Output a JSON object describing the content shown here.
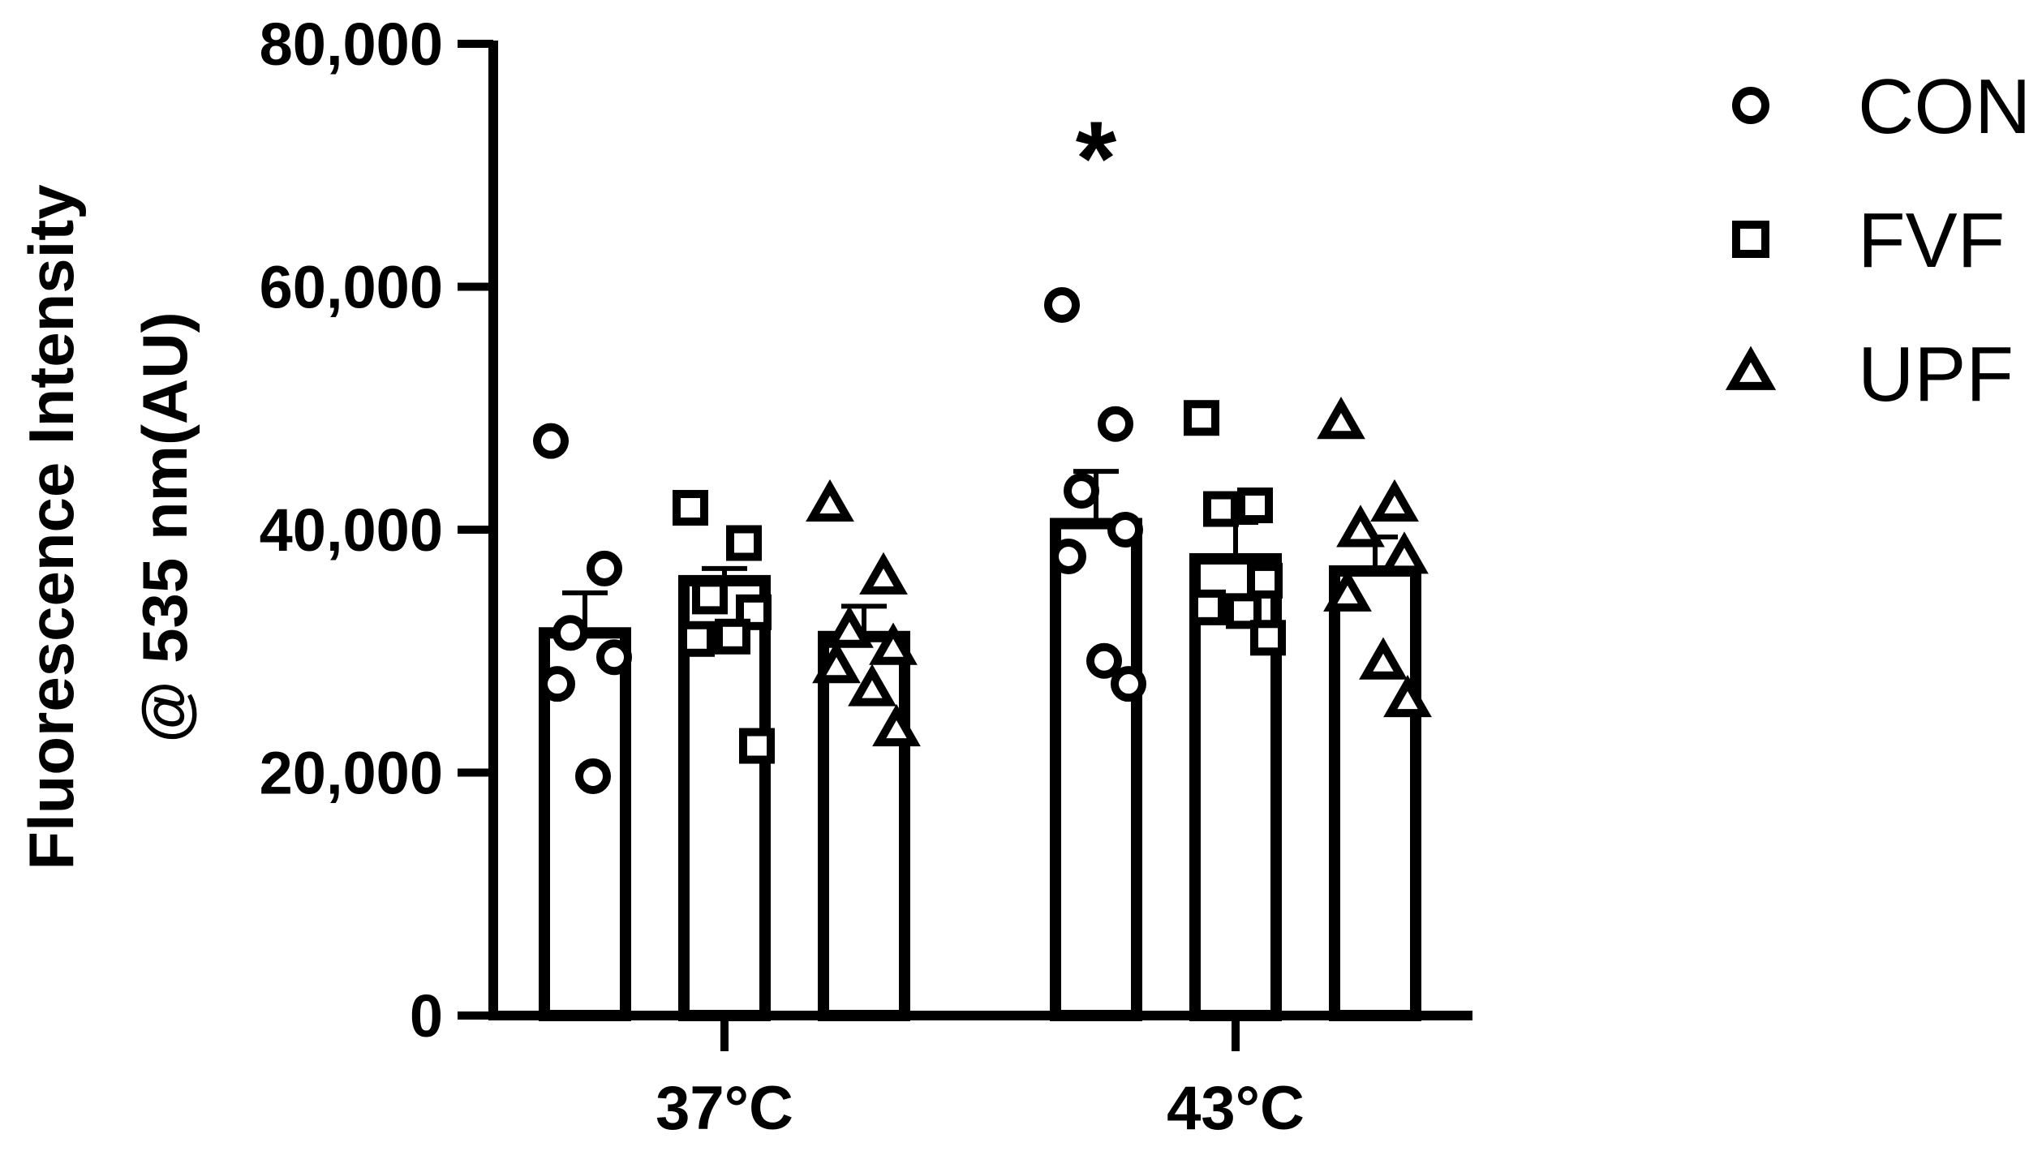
{
  "chart_data": {
    "type": "bar",
    "ylabel_line1": "Fluorescence Intensity",
    "ylabel_line2": "@ 535 nm(AU)",
    "ylim": [
      0,
      80000
    ],
    "yticks": [
      0,
      20000,
      40000,
      60000,
      80000
    ],
    "ytick_labels": [
      "0",
      "20,000",
      "40,000",
      "60,000",
      "80,000"
    ],
    "categories": [
      "37°C",
      "43°C"
    ],
    "series": [
      {
        "name": "CON",
        "marker": "circle",
        "means": [
          31500,
          40500
        ],
        "sem": [
          3300,
          4300
        ],
        "points": [
          [
            47300,
            36800,
            31500,
            29500,
            27300,
            19700
          ],
          [
            58500,
            48700,
            43200,
            40000,
            37800,
            29200,
            27300
          ]
        ]
      },
      {
        "name": "FVF",
        "marker": "square",
        "means": [
          35800,
          37600
        ],
        "sem": [
          1000,
          3000
        ],
        "points": [
          [
            41800,
            38900,
            34500,
            33200,
            31000,
            31200,
            22200
          ],
          [
            49200,
            42000,
            41700,
            35800,
            33600,
            33300,
            31100
          ]
        ]
      },
      {
        "name": "UPF",
        "marker": "triangle",
        "means": [
          31200,
          36600
        ],
        "sem": [
          2500,
          2800
        ],
        "points": [
          [
            42000,
            36000,
            31600,
            30200,
            28700,
            26800,
            23500
          ],
          [
            48800,
            42000,
            39900,
            37700,
            34600,
            29000,
            25900
          ]
        ]
      }
    ],
    "annotations": [
      {
        "text": "*",
        "category": "43°C",
        "series": "CON"
      }
    ],
    "legend": "right",
    "grid": false
  }
}
